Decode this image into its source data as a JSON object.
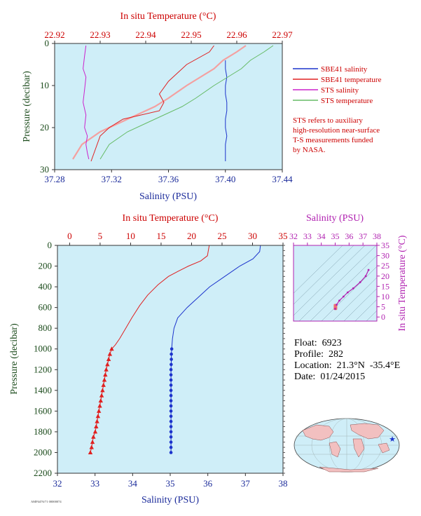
{
  "colors": {
    "sbe_salinity": "#1c33cc",
    "sbe_temperature": "#e02020",
    "sts_salinity": "#cc22cc",
    "sts_temperature": "#66bb66",
    "sts_temperature_band": "#f4a0a0",
    "plot_background": "#cfeef8",
    "red_axis": "#cc0000",
    "blue_axis": "#1a2a9a",
    "pressure_axis": "#1a4a1a",
    "magenta_axis": "#b020b0"
  },
  "chart_data": [
    {
      "type": "line",
      "name": "surface-profile",
      "top_axis_label": "In situ Temperature (°C)",
      "top_ticks": [
        "22.92",
        "22.93",
        "22.94",
        "22.95",
        "22.96",
        "22.97"
      ],
      "xlim_temperature": [
        22.92,
        22.97
      ],
      "xlabel": "Salinity (PSU)",
      "bottom_ticks": [
        "37.28",
        "37.32",
        "37.36",
        "37.40",
        "37.44"
      ],
      "xlim_salinity": [
        37.28,
        37.44
      ],
      "ylabel": "Pressure (decibar)",
      "y_ticks": [
        "0",
        "10",
        "20",
        "30"
      ],
      "ylim": [
        30,
        0
      ],
      "legend_placement": "right",
      "series": [
        {
          "name": "SBE41 salinity",
          "x": [
            37.4,
            37.4,
            37.401,
            37.4,
            37.4,
            37.401,
            37.401,
            37.4,
            37.4,
            37.401,
            37.4,
            37.4,
            37.4
          ],
          "y": [
            4,
            6,
            8,
            10,
            12,
            14,
            16,
            18,
            20,
            22,
            24,
            26,
            28
          ]
        },
        {
          "name": "SBE41 temperature",
          "x": [
            22.955,
            22.954,
            22.949,
            22.947,
            22.945,
            22.943,
            22.944,
            22.943,
            22.935,
            22.932,
            22.93,
            22.929,
            22.928
          ],
          "y": [
            0.5,
            2,
            5,
            7,
            9,
            12,
            14,
            16,
            18,
            20,
            22,
            25,
            28
          ]
        },
        {
          "name": "STS salinity",
          "x": [
            37.302,
            37.301,
            37.3,
            37.302,
            37.301,
            37.3,
            37.302,
            37.301,
            37.303,
            37.302,
            37.303,
            37.304
          ],
          "y": [
            0.5,
            3,
            6,
            8,
            11,
            14,
            17,
            20,
            22,
            24,
            26,
            27.5
          ]
        },
        {
          "name": "STS temperature",
          "x": [
            22.968,
            22.966,
            22.963,
            22.961,
            22.958,
            22.955,
            22.951,
            22.948,
            22.944,
            22.94,
            22.936,
            22.932,
            22.93
          ],
          "y": [
            0.5,
            2,
            4,
            6,
            8,
            10,
            13,
            15,
            17,
            19,
            21,
            24,
            27.5
          ]
        }
      ],
      "annotation": [
        "STS refers to auxiliary",
        "high-resolution near-surface",
        "T-S measurements funded",
        "by NASA."
      ]
    },
    {
      "type": "line",
      "name": "deep-profile",
      "top_axis_label": "In situ Temperature (°C)",
      "top_ticks": [
        "0",
        "5",
        "10",
        "15",
        "20",
        "25",
        "30",
        "35"
      ],
      "xlim_temperature": [
        -2,
        35
      ],
      "xlabel": "Salinity (PSU)",
      "bottom_ticks": [
        "32",
        "33",
        "34",
        "35",
        "36",
        "37",
        "38"
      ],
      "xlim_salinity": [
        32,
        38
      ],
      "ylabel": "Pressure (decibar)",
      "y_ticks": [
        "0",
        "200",
        "400",
        "600",
        "800",
        "1000",
        "1200",
        "1400",
        "1600",
        "1800",
        "2000",
        "2200"
      ],
      "ylim": [
        2200,
        0
      ],
      "series": [
        {
          "name": "temperature",
          "x": [
            22.9,
            22.6,
            21.5,
            19.5,
            17.8,
            16.2,
            14.5,
            12.8,
            11.5,
            10.2,
            9.2,
            8.2,
            7.5,
            6.9,
            6.6,
            6.4,
            6.2,
            6.0,
            5.7,
            5.4,
            5.1,
            4.8,
            4.5,
            4.2,
            3.9,
            3.6,
            3.4
          ],
          "y": [
            0,
            100,
            150,
            200,
            250,
            300,
            380,
            480,
            580,
            700,
            800,
            900,
            960,
            1000,
            1050,
            1100,
            1150,
            1200,
            1300,
            1400,
            1500,
            1600,
            1700,
            1800,
            1850,
            1950,
            2000
          ]
        },
        {
          "name": "salinity",
          "x": [
            37.4,
            37.38,
            37.2,
            36.85,
            36.45,
            36.05,
            35.75,
            35.45,
            35.2,
            35.1,
            35.06,
            35.04,
            35.03,
            35.03,
            35.02,
            35.02,
            35.02,
            35.02,
            35.02,
            35.02,
            35.02,
            35.02,
            35.02
          ],
          "y": [
            0,
            60,
            130,
            200,
            300,
            400,
            500,
            600,
            700,
            800,
            900,
            1000,
            1050,
            1100,
            1200,
            1300,
            1400,
            1500,
            1600,
            1700,
            1800,
            1900,
            2000
          ]
        }
      ],
      "marker_pressures_start": 1000,
      "marker_pressure_step": 50
    },
    {
      "type": "scatter",
      "name": "ts-diagram",
      "top_axis_label": "Salinity (PSU)",
      "top_ticks": [
        "32",
        "33",
        "34",
        "35",
        "36",
        "37",
        "38"
      ],
      "xlim": [
        32,
        38
      ],
      "right_axis_label": "In situ Temperature (°C)",
      "right_ticks": [
        "0",
        "5",
        "10",
        "15",
        "20",
        "25",
        "30",
        "35"
      ],
      "ylim": [
        -2,
        35
      ],
      "x": [
        35.0,
        35.1,
        35.3,
        35.6,
        35.9,
        36.3,
        36.8,
        37.2,
        37.4
      ],
      "y": [
        4,
        6,
        8,
        10,
        12,
        14,
        17,
        20,
        23
      ],
      "cluster": {
        "x": 35.02,
        "y_range": [
          3.4,
          6.4
        ]
      }
    }
  ],
  "info": {
    "float": "Float:  6923",
    "profile": "Profile:  282",
    "location": "Location:  21.3°N  -35.4°E",
    "date": "Date:  01/24/2015"
  },
  "footer_stamp": "AMP4476/71 00000074",
  "map": {
    "marker": "★"
  }
}
